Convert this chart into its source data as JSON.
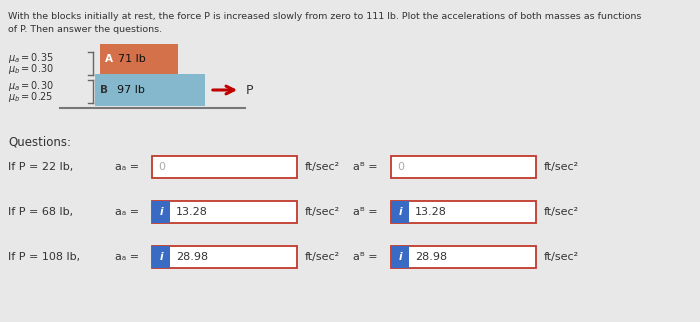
{
  "title_line1": "With the blocks initially at rest, the force P is increased slowly from zero to 111 lb. Plot the accelerations of both masses as functions",
  "title_line2": "of P. Then answer the questions.",
  "mu_lines": [
    "μa = 0.35",
    "μb = 0.30",
    "μa = 0.30",
    "μb = 0.25"
  ],
  "block_A_color": "#d4714a",
  "block_B_color": "#85b8cc",
  "block_A_label": "A",
  "block_A_weight": "71 lb",
  "block_B_label": "B",
  "block_B_weight": "97 lb",
  "arrow_color": "#c00000",
  "P_label": "P",
  "questions_label": "Questions:",
  "rows": [
    {
      "condition": "If P = 22 lb,",
      "aA_label": "aₐ =",
      "aA_value": "0",
      "aA_has_icon": false,
      "unit_A": "ft/sec²",
      "aB_label": "aᴮ =",
      "aB_value": "0",
      "aB_has_icon": false,
      "unit_B": "ft/sec²"
    },
    {
      "condition": "If P = 68 lb,",
      "aA_label": "aₐ =",
      "aA_value": "13.28",
      "aA_has_icon": true,
      "unit_A": "ft/sec²",
      "aB_label": "aᴮ =",
      "aB_value": "13.28",
      "aB_has_icon": true,
      "unit_B": "ft/sec²"
    },
    {
      "condition": "If P = 108 lb,",
      "aA_label": "aₐ =",
      "aA_value": "28.98",
      "aA_has_icon": true,
      "unit_A": "ft/sec²",
      "aB_label": "aᴮ =",
      "aB_value": "28.98",
      "aB_has_icon": true,
      "unit_B": "ft/sec²"
    }
  ],
  "bg_color": "#e8e8e8",
  "text_color": "#333333",
  "icon_bg": "#3a6bc4",
  "box_border": "#c0392b",
  "box_face": "#ffffff"
}
